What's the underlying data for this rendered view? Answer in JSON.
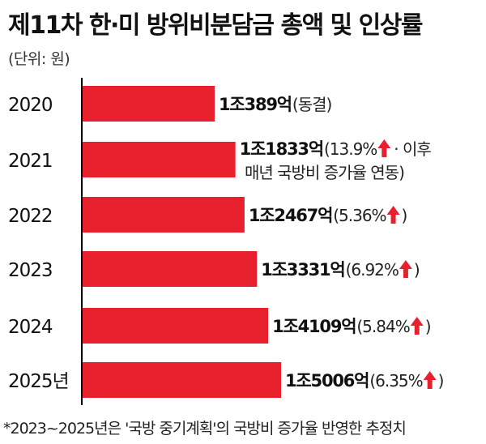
{
  "title": "제11차 한·미 방위비분담금 총액 및 인상률",
  "unit": "(단위: 원)",
  "footnote": "*2023~2025년은 '국방 중기계획'의 국방비 증가율 반영한 추정치",
  "colors": {
    "bar": "#e8202e",
    "arrow": "#e8202e",
    "axis": "#000000"
  },
  "arrow_icon": "up-arrow-icon",
  "chart_data": {
    "type": "bar",
    "orientation": "horizontal",
    "categories": [
      "2020",
      "2021",
      "2022",
      "2023",
      "2024",
      "2025년"
    ],
    "values": [
      10389,
      11833,
      12467,
      13331,
      14109,
      15006
    ],
    "value_unit": "억원",
    "labels": [
      {
        "amount": "1조389억",
        "note_lines": [
          "(동결)"
        ],
        "arrow": false
      },
      {
        "amount": "1조1833억",
        "note_lines": [
          "(13.9%",
          "· 이후",
          "매년 국방비 증가율 연동)"
        ],
        "arrow": true
      },
      {
        "amount": "1조2467억",
        "note_lines": [
          "(5.36%",
          ")"
        ],
        "arrow": true
      },
      {
        "amount": "1조3331억",
        "note_lines": [
          "(6.92%",
          ")"
        ],
        "arrow": true
      },
      {
        "amount": "1조4109억",
        "note_lines": [
          "(5.84%",
          ")"
        ],
        "arrow": true
      },
      {
        "amount": "1조5006억",
        "note_lines": [
          "(6.35%",
          ")"
        ],
        "arrow": true
      }
    ]
  }
}
